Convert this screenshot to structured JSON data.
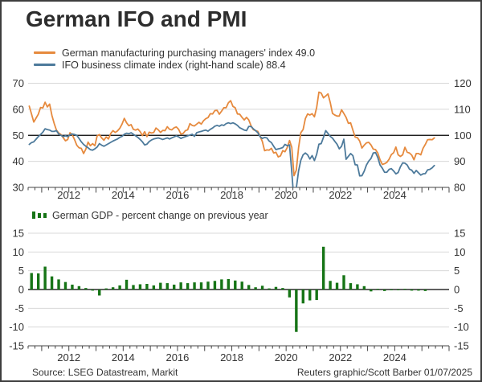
{
  "title": "German IFO and PMI",
  "legend": {
    "pmi": "German manufacturing purchasing managers' index 49.0",
    "ifo": "IFO business climate index (right-hand scale) 88.4",
    "gdp": "German GDP - percent change on previous year"
  },
  "footer": {
    "source": "Source: LSEG Datastream, Markit",
    "credit": "Reuters graphic/Scott Barber 01/07/2025"
  },
  "colors": {
    "pmi": "#e68a3e",
    "ifo": "#4d7a9b",
    "gdp": "#167416",
    "grid": "#d8d8d8",
    "reference": "#000000",
    "axis": "#444444",
    "text": "#333333"
  },
  "chart_data": [
    {
      "type": "line",
      "title": "German IFO and PMI",
      "x_start": "2010-07",
      "frequency": "monthly",
      "x_tick_labels": [
        "2012",
        "2014",
        "2016",
        "2018",
        "2020",
        "2022",
        "2024"
      ],
      "x_range_years": [
        2010.5,
        2026.0
      ],
      "grid": "horizontal-only",
      "legend_position": "top-left",
      "left_axis": {
        "min": 30,
        "max": 70,
        "ticks": [
          70,
          60,
          50,
          40,
          30
        ]
      },
      "right_axis": {
        "min": 80,
        "max": 120,
        "ticks": [
          120,
          110,
          100,
          90,
          80
        ]
      },
      "reference_line": {
        "left_value": 50,
        "right_value": 100
      },
      "series": [
        {
          "name": "German manufacturing purchasing managers' index",
          "axis": "left",
          "latest": 49.0,
          "values": [
            61.2,
            58.2,
            55.1,
            56.6,
            58.1,
            60.7,
            60.5,
            62.7,
            60.9,
            62.0,
            57.7,
            54.6,
            52.0,
            50.9,
            50.3,
            49.1,
            47.9,
            48.4,
            51.0,
            50.2,
            48.4,
            46.2,
            45.2,
            45.0,
            43.0,
            44.7,
            47.4,
            46.0,
            46.8,
            46.0,
            49.8,
            50.3,
            49.0,
            48.1,
            49.4,
            48.6,
            50.7,
            51.8,
            51.1,
            51.7,
            52.7,
            54.3,
            56.5,
            54.8,
            53.7,
            54.1,
            52.3,
            52.0,
            52.4,
            51.4,
            49.9,
            51.4,
            49.5,
            51.2,
            50.9,
            51.1,
            52.8,
            52.1,
            51.1,
            51.9,
            51.8,
            53.3,
            52.3,
            52.1,
            52.9,
            53.2,
            52.3,
            50.5,
            50.7,
            51.8,
            52.1,
            54.5,
            53.8,
            53.6,
            54.3,
            55.0,
            54.3,
            55.6,
            56.4,
            56.8,
            58.3,
            58.2,
            59.5,
            59.6,
            58.1,
            59.3,
            60.6,
            60.6,
            62.5,
            63.3,
            61.1,
            60.6,
            58.2,
            58.1,
            56.9,
            55.9,
            56.9,
            55.9,
            53.7,
            52.2,
            51.8,
            51.5,
            49.7,
            47.6,
            44.1,
            44.4,
            44.3,
            45.0,
            43.2,
            43.5,
            41.7,
            42.1,
            44.1,
            43.7,
            45.3,
            48.0,
            45.4,
            34.5,
            36.6,
            45.2,
            51.0,
            52.2,
            56.4,
            58.2,
            57.8,
            58.3,
            57.1,
            60.7,
            66.6,
            66.2,
            64.4,
            65.1,
            65.9,
            62.6,
            58.4,
            57.8,
            57.4,
            57.4,
            59.8,
            58.4,
            56.9,
            54.6,
            54.8,
            52.0,
            49.3,
            49.1,
            47.8,
            45.1,
            46.2,
            47.1,
            47.3,
            46.3,
            44.7,
            44.5,
            43.2,
            40.6,
            38.8,
            39.1,
            39.6,
            40.8,
            42.6,
            43.3,
            45.5,
            42.5,
            41.9,
            42.5,
            45.4,
            43.5,
            43.2,
            42.4,
            40.6,
            43.0,
            43.0,
            42.5,
            45.0,
            46.5,
            48.3,
            48.4,
            48.3,
            49.0
          ]
        },
        {
          "name": "IFO business climate index",
          "axis": "right",
          "latest": 88.4,
          "values": [
            96.5,
            97.2,
            97.5,
            98.5,
            99.5,
            100.3,
            101.2,
            102.5,
            102.2,
            102.0,
            101.5,
            101.5,
            101.8,
            100.5,
            100.0,
            99.5,
            99.8,
            99.5,
            100.2,
            100.5,
            100.3,
            100.0,
            98.8,
            97.5,
            96.5,
            95.8,
            95.2,
            94.5,
            94.3,
            94.8,
            95.5,
            96.8,
            96.2,
            95.8,
            96.3,
            96.8,
            97.3,
            97.8,
            98.2,
            98.6,
            99.2,
            99.6,
            100.4,
            100.8,
            100.6,
            101.0,
            100.4,
            99.8,
            99.2,
            98.4,
            97.5,
            96.3,
            96.6,
            97.6,
            98.2,
            98.6,
            98.8,
            99.0,
            98.7,
            98.4,
            98.7,
            99.0,
            98.6,
            99.0,
            99.4,
            99.8,
            99.4,
            98.8,
            99.2,
            99.5,
            99.8,
            100.1,
            100.4,
            99.6,
            101.0,
            101.3,
            101.5,
            101.8,
            102.0,
            101.6,
            102.3,
            102.8,
            103.5,
            103.8,
            103.5,
            104.0,
            103.8,
            104.5,
            104.8,
            104.5,
            104.8,
            104.4,
            103.8,
            102.9,
            102.5,
            102.0,
            101.8,
            103.4,
            103.4,
            102.5,
            101.8,
            101.0,
            99.5,
            98.8,
            99.2,
            99.0,
            97.8,
            97.2,
            95.8,
            94.5,
            94.8,
            95.0,
            95.3,
            96.5,
            96.0,
            96.3,
            86.0,
            74.4,
            79.7,
            86.3,
            90.4,
            92.5,
            93.2,
            92.5,
            90.9,
            92.2,
            90.3,
            92.7,
            96.6,
            96.8,
            99.2,
            101.8,
            100.7,
            99.6,
            98.9,
            97.7,
            96.6,
            94.8,
            95.8,
            98.5,
            90.8,
            91.9,
            93.0,
            92.2,
            88.7,
            88.6,
            84.4,
            84.5,
            86.2,
            88.6,
            90.1,
            91.1,
            93.2,
            93.4,
            91.5,
            88.6,
            87.4,
            85.8,
            85.8,
            86.9,
            87.2,
            86.3,
            85.2,
            85.7,
            87.9,
            89.4,
            89.3,
            88.6,
            87.0,
            86.6,
            85.4,
            86.5,
            85.6,
            84.7,
            85.2,
            85.3,
            86.7,
            86.9,
            87.5,
            88.4
          ]
        }
      ]
    },
    {
      "type": "bar",
      "title": "German GDP - percent change on previous year",
      "x_start": "2010-Q3",
      "frequency": "quarterly",
      "x_tick_labels": [
        "2012",
        "2014",
        "2016",
        "2018",
        "2020",
        "2022",
        "2024"
      ],
      "x_range_years": [
        2010.5,
        2026.0
      ],
      "axis": {
        "min": -15,
        "max": 15,
        "ticks": [
          15,
          10,
          5,
          0,
          -5,
          -10,
          -15
        ]
      },
      "values": [
        4.4,
        4.3,
        6.1,
        3.5,
        2.7,
        2.0,
        1.3,
        0.9,
        0.4,
        -0.3,
        -1.6,
        0.3,
        0.6,
        1.1,
        2.6,
        1.2,
        1.4,
        1.5,
        1.1,
        1.8,
        1.7,
        1.3,
        1.9,
        1.7,
        1.9,
        1.9,
        2.1,
        2.3,
        2.7,
        2.8,
        2.4,
        2.1,
        1.2,
        0.6,
        1.0,
        0.3,
        0.7,
        0.4,
        -2.1,
        -11.3,
        -3.7,
        -2.9,
        -2.8,
        11.4,
        2.3,
        1.8,
        3.8,
        1.7,
        1.4,
        0.9,
        -0.5,
        0.1,
        -0.4,
        -0.2,
        -0.2,
        0.1,
        -0.3,
        -0.3,
        -0.4
      ]
    }
  ]
}
